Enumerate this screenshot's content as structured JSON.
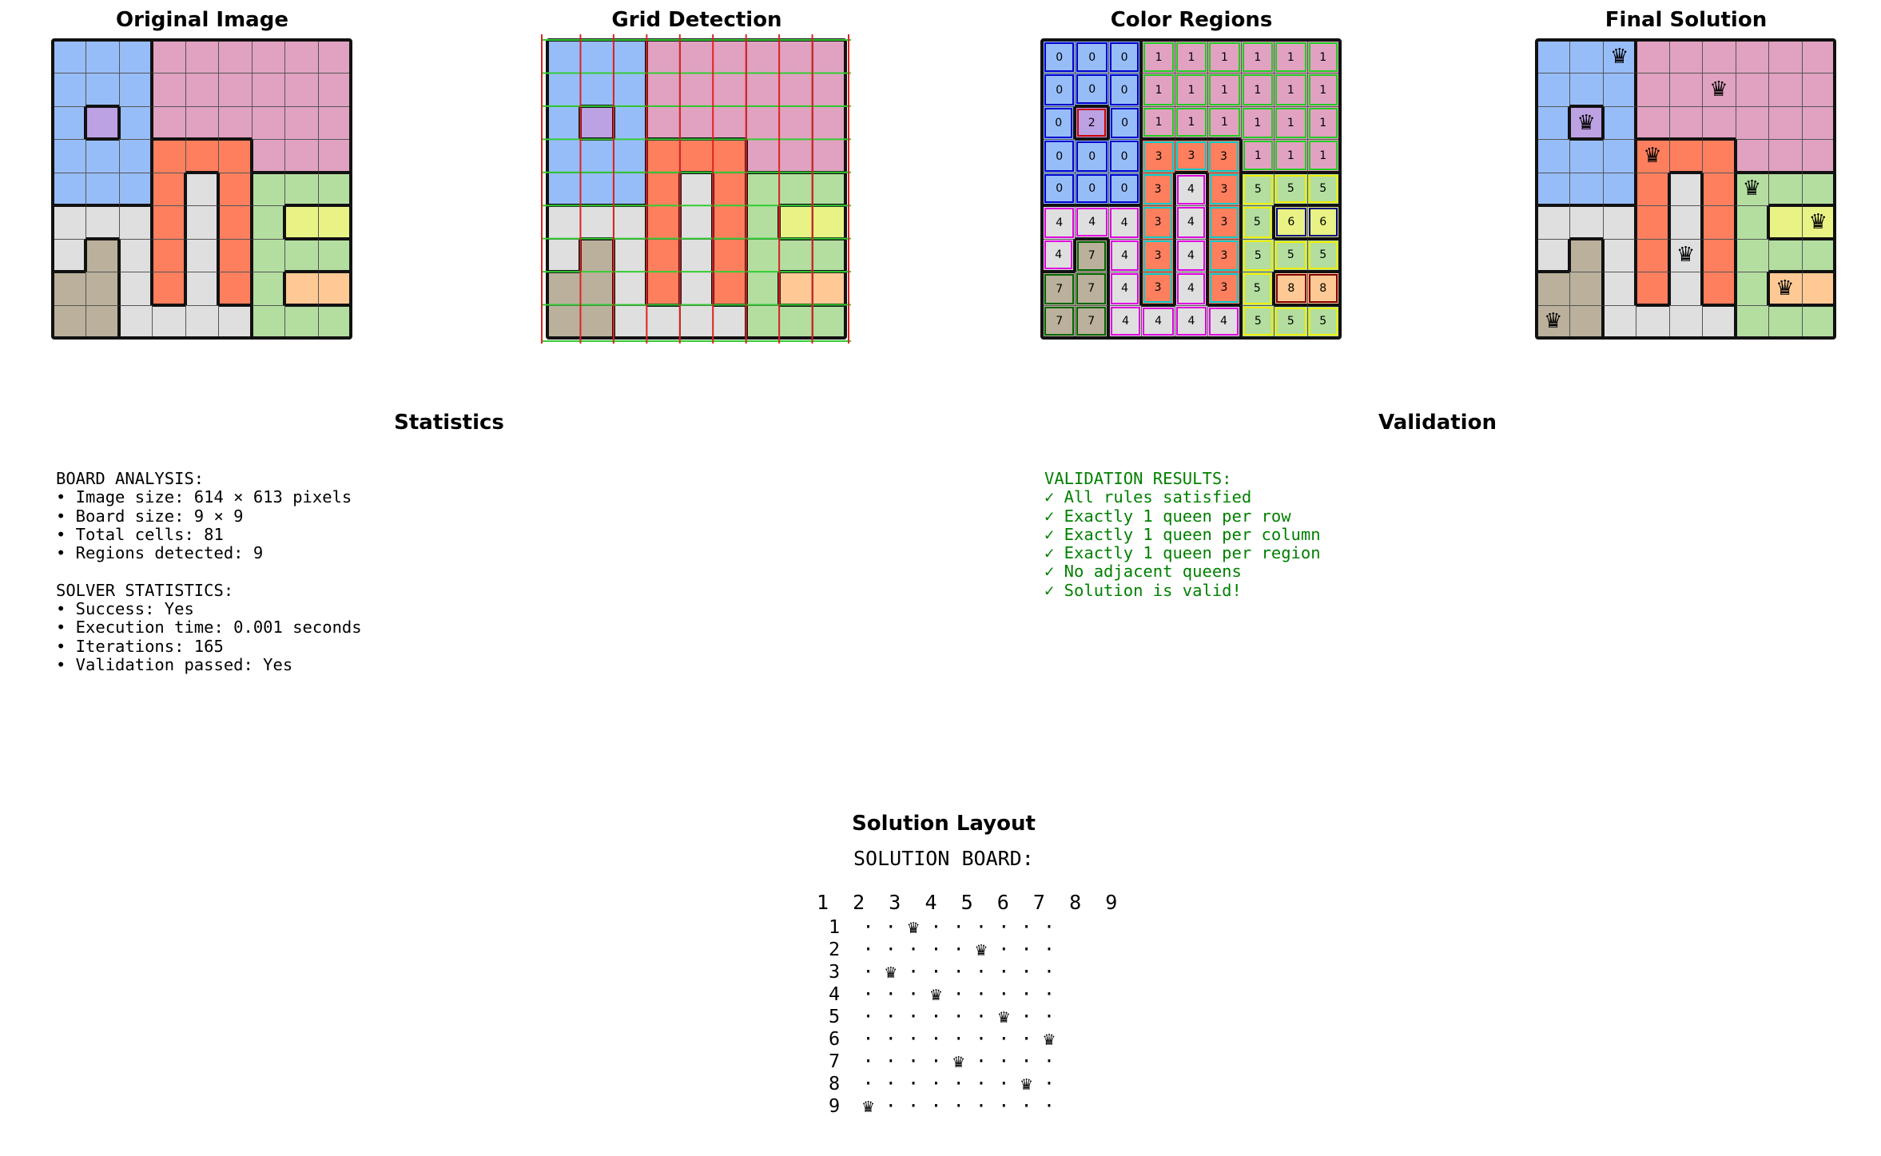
{
  "panels": {
    "original": {
      "title": "Original Image"
    },
    "grid": {
      "title": "Grid Detection"
    },
    "regions": {
      "title": "Color Regions"
    },
    "solution": {
      "title": "Final Solution"
    },
    "statistics": {
      "title": "Statistics"
    },
    "validation": {
      "title": "Validation"
    },
    "layout": {
      "title": "Solution Layout"
    }
  },
  "board": {
    "size": 9,
    "region_grid": [
      [
        0,
        0,
        0,
        1,
        1,
        1,
        1,
        1,
        1
      ],
      [
        0,
        0,
        0,
        1,
        1,
        1,
        1,
        1,
        1
      ],
      [
        0,
        2,
        0,
        1,
        1,
        1,
        1,
        1,
        1
      ],
      [
        0,
        0,
        0,
        3,
        3,
        3,
        1,
        1,
        1
      ],
      [
        0,
        0,
        0,
        3,
        4,
        3,
        5,
        5,
        5
      ],
      [
        4,
        4,
        4,
        3,
        4,
        3,
        5,
        6,
        6
      ],
      [
        4,
        7,
        4,
        3,
        4,
        3,
        5,
        5,
        5
      ],
      [
        7,
        7,
        4,
        3,
        4,
        3,
        5,
        8,
        8
      ],
      [
        7,
        7,
        4,
        4,
        4,
        4,
        5,
        5,
        5
      ]
    ],
    "region_colors": {
      "0": "#97bdf9",
      "1": "#e0a2c0",
      "2": "#bca1e3",
      "3": "#fd7f5e",
      "4": "#dfdfdf",
      "5": "#b3dea0",
      "6": "#e9f285",
      "7": "#bab09b",
      "8": "#fec994"
    },
    "region_outline_colors": {
      "0": "#0000cc",
      "1": "#22cc22",
      "2": "#cc0000",
      "3": "#00cccc",
      "4": "#dd00dd",
      "5": "#eeee00",
      "6": "#000080",
      "7": "#006600",
      "8": "#800000"
    },
    "queens": [
      [
        0,
        2
      ],
      [
        1,
        5
      ],
      [
        2,
        1
      ],
      [
        3,
        3
      ],
      [
        4,
        6
      ],
      [
        5,
        8
      ],
      [
        6,
        4
      ],
      [
        7,
        7
      ],
      [
        8,
        0
      ]
    ],
    "queen_symbol": "♛",
    "detection_line_colors": {
      "vertical": "#dd2222",
      "horizontal": "#33cc33"
    }
  },
  "statistics": {
    "lines": [
      "BOARD ANALYSIS:",
      "• Image size: 614 × 613 pixels",
      "• Board size: 9 × 9",
      "• Total cells: 81",
      "• Regions detected: 9",
      "",
      "SOLVER STATISTICS:",
      "• Success: Yes",
      "• Execution time: 0.001 seconds",
      "• Iterations: 165",
      "• Validation passed: Yes"
    ]
  },
  "validation": {
    "color": "#008000",
    "lines": [
      "VALIDATION RESULTS:",
      "✓ All rules satisfied",
      "✓ Exactly 1 queen per row",
      "✓ Exactly 1 queen per column",
      "✓ Exactly 1 queen per region",
      "✓ No adjacent queens",
      "✓ Solution is valid!"
    ]
  },
  "solution_layout": {
    "heading": "SOLUTION BOARD:",
    "header_row": "1  2  3  4  5  6  7  8  9",
    "rows": [
      "1  · · ♛ · · · · · ·",
      "2  · · · · · ♛ · · ·",
      "3  · ♛ · · · · · · ·",
      "4  · · · ♛ · · · · ·",
      "5  · · · · · · ♛ · ·",
      "6  · · · · · · · · ♛",
      "7  · · · · ♛ · · · ·",
      "8  · · · · · · · ♛ ·",
      "9  ♛ · · · · · · · ·"
    ]
  }
}
